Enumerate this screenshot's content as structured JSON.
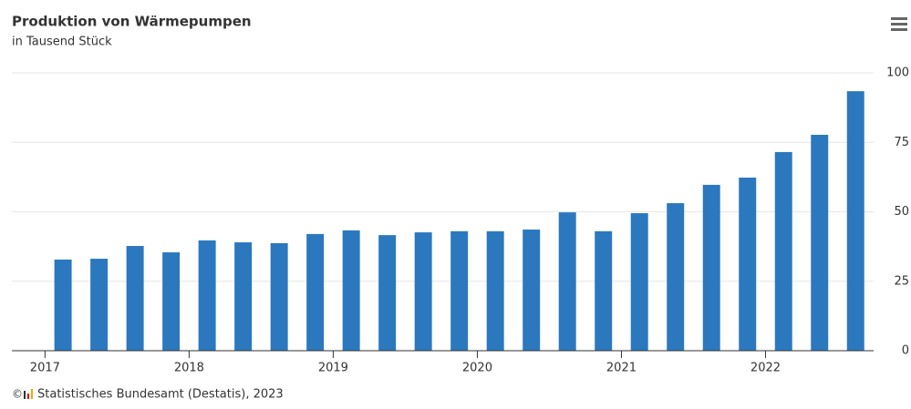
{
  "chart_data": {
    "type": "bar",
    "title": "Produktion von Wärmepumpen",
    "subtitle": "in Tausend Stück",
    "source": "Statistisches Bundesamt (Destatis), 2023",
    "x": [
      2017.125,
      2017.375,
      2017.625,
      2017.875,
      2018.125,
      2018.375,
      2018.625,
      2018.875,
      2019.125,
      2019.375,
      2019.625,
      2019.875,
      2020.125,
      2020.375,
      2020.625,
      2020.875,
      2021.125,
      2021.375,
      2021.625,
      2021.875,
      2022.125,
      2022.375,
      2022.625
    ],
    "values": [
      32.8,
      33.1,
      37.7,
      35.4,
      39.7,
      39,
      38.7,
      42,
      43.3,
      41.6,
      42.6,
      43,
      43,
      43.6,
      49.8,
      43,
      49.5,
      53.1,
      59.7,
      62.3,
      71.5,
      77.7,
      93.4
    ],
    "color": "#2b78be",
    "xlim": [
      2016.77,
      2022.75
    ],
    "xticks": [
      2017,
      2018,
      2019,
      2020,
      2021,
      2022
    ],
    "ylim": [
      0,
      100
    ],
    "yticks": [
      0,
      25,
      50,
      75,
      100
    ],
    "grid": true
  }
}
